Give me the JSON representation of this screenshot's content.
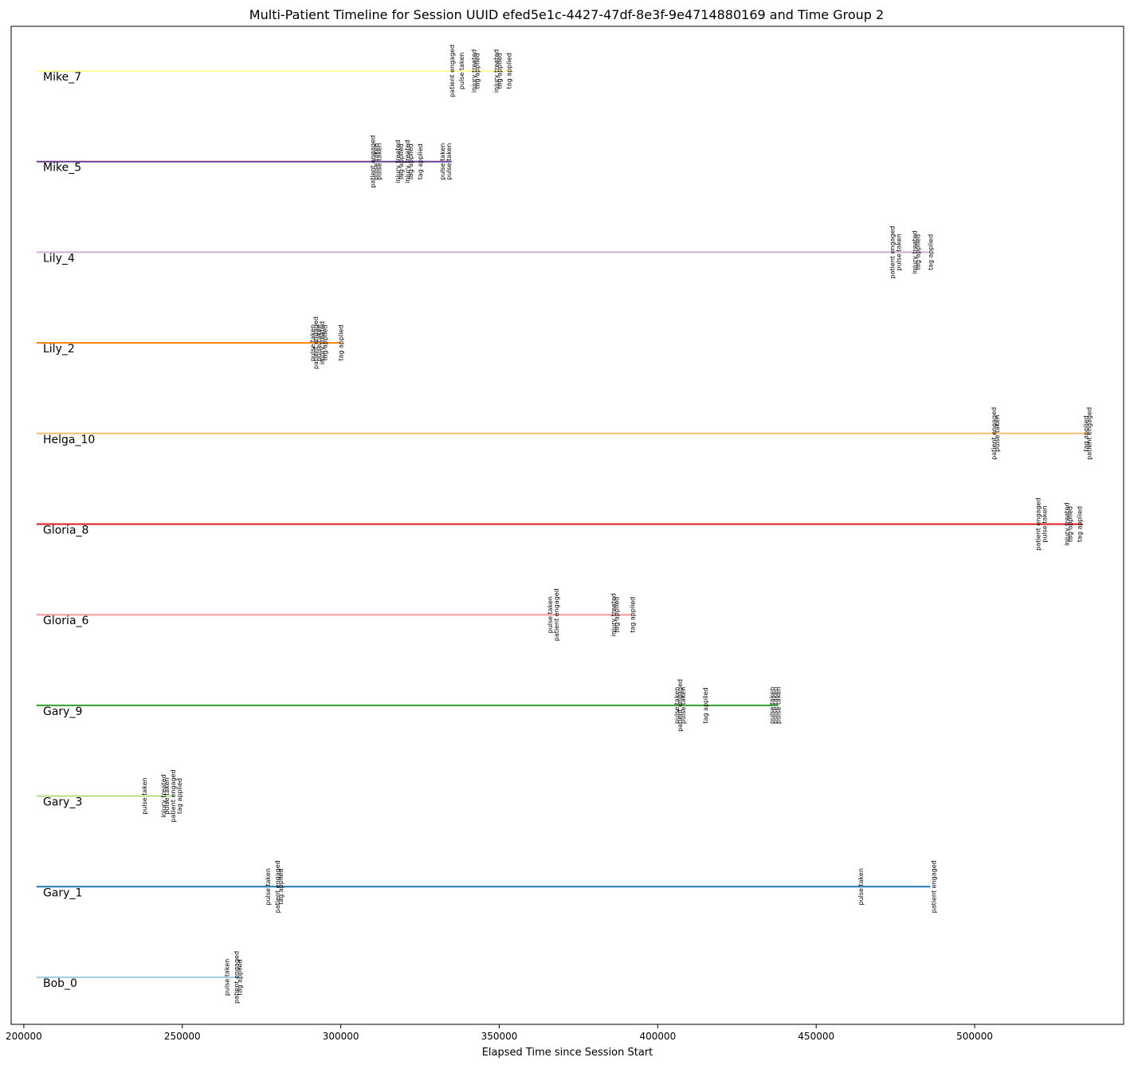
{
  "chart_data": {
    "type": "line",
    "title": "Multi-Patient Timeline for Session UUID efed5e1c-4427-47df-8e3f-9e4714880169 and Time Group 2",
    "xlabel": "Elapsed Time since Session Start",
    "ylabel": "",
    "xlim": [
      196000,
      547000
    ],
    "xticks": [
      200000,
      250000,
      300000,
      350000,
      400000,
      450000,
      500000
    ],
    "grid": false,
    "line_start": 204000,
    "rows": [
      {
        "name": "Bob_0",
        "color": "#a6cee3",
        "end": 268000,
        "events": [
          {
            "x": 264000,
            "label": "pulse taken"
          },
          {
            "x": 267000,
            "label": "patient engaged"
          },
          {
            "x": 268000,
            "label": "tag applied"
          }
        ]
      },
      {
        "name": "Gary_1",
        "color": "#1f78b4",
        "end": 486000,
        "events": [
          {
            "x": 277000,
            "label": "pulse taken"
          },
          {
            "x": 280000,
            "label": "patient engaged"
          },
          {
            "x": 281000,
            "label": "tag applied"
          },
          {
            "x": 464000,
            "label": "pulse taken"
          },
          {
            "x": 487000,
            "label": "patient engaged"
          }
        ]
      },
      {
        "name": "Gary_3",
        "color": "#b2df8a",
        "end": 247000,
        "events": [
          {
            "x": 238000,
            "label": "pulse taken"
          },
          {
            "x": 244000,
            "label": "injury treated"
          },
          {
            "x": 245000,
            "label": "pulse taken"
          },
          {
            "x": 247000,
            "label": "patient engaged"
          },
          {
            "x": 249000,
            "label": "tag applied"
          }
        ]
      },
      {
        "name": "Gary_9",
        "color": "#33a02c",
        "end": 438000,
        "events": [
          {
            "x": 406000,
            "label": "pulse taken"
          },
          {
            "x": 407000,
            "label": "patient engaged"
          },
          {
            "x": 408000,
            "label": "pulse taken"
          },
          {
            "x": 415000,
            "label": "tag applied"
          },
          {
            "x": 436000,
            "label": "pulse taken"
          },
          {
            "x": 437000,
            "label": "pulse taken"
          },
          {
            "x": 438000,
            "label": "pulse taken"
          }
        ]
      },
      {
        "name": "Gloria_6",
        "color": "#fb9a99",
        "end": 392000,
        "events": [
          {
            "x": 366000,
            "label": "pulse taken"
          },
          {
            "x": 368000,
            "label": "patient engaged"
          },
          {
            "x": 386000,
            "label": "injury treated"
          },
          {
            "x": 387000,
            "label": "tag applied"
          },
          {
            "x": 392000,
            "label": "tag applied"
          }
        ]
      },
      {
        "name": "Gloria_8",
        "color": "#e31a1c",
        "end": 534000,
        "events": [
          {
            "x": 520000,
            "label": "patient engaged"
          },
          {
            "x": 522000,
            "label": "pulse taken"
          },
          {
            "x": 529000,
            "label": "injury treated"
          },
          {
            "x": 530000,
            "label": "tag applied"
          },
          {
            "x": 533000,
            "label": "tag applied"
          }
        ]
      },
      {
        "name": "Helga_10",
        "color": "#fdbf6f",
        "end": 536000,
        "events": [
          {
            "x": 506000,
            "label": "patient engaged"
          },
          {
            "x": 507000,
            "label": "pulse taken"
          },
          {
            "x": 535000,
            "label": "tag applied"
          },
          {
            "x": 536000,
            "label": "patient engaged"
          }
        ]
      },
      {
        "name": "Lily_2",
        "color": "#ff7f00",
        "end": 300000,
        "events": [
          {
            "x": 291000,
            "label": "pulse taken"
          },
          {
            "x": 292000,
            "label": "patient engaged"
          },
          {
            "x": 293000,
            "label": "pulse taken"
          },
          {
            "x": 294000,
            "label": "injury treated"
          },
          {
            "x": 295000,
            "label": "tag applied"
          },
          {
            "x": 300000,
            "label": "tag applied"
          }
        ]
      },
      {
        "name": "Lily_4",
        "color": "#cab2d6",
        "end": 486000,
        "events": [
          {
            "x": 474000,
            "label": "patient engaged"
          },
          {
            "x": 476000,
            "label": "pulse taken"
          },
          {
            "x": 481000,
            "label": "injury treated"
          },
          {
            "x": 482000,
            "label": "tag applied"
          },
          {
            "x": 486000,
            "label": "tag applied"
          }
        ]
      },
      {
        "name": "Mike_5",
        "color": "#6a3d9a",
        "end": 335000,
        "events": [
          {
            "x": 310000,
            "label": "patient engaged"
          },
          {
            "x": 311000,
            "label": "pulse taken"
          },
          {
            "x": 312000,
            "label": "pulse taken"
          },
          {
            "x": 318000,
            "label": "injury treated"
          },
          {
            "x": 319000,
            "label": "tag applied"
          },
          {
            "x": 321000,
            "label": "injury treated"
          },
          {
            "x": 322000,
            "label": "tag applied"
          },
          {
            "x": 325000,
            "label": "tag applied"
          },
          {
            "x": 332000,
            "label": "pulse taken"
          },
          {
            "x": 334000,
            "label": "pulse taken"
          }
        ]
      },
      {
        "name": "Mike_7",
        "color": "#ffff99",
        "end": 354000,
        "events": [
          {
            "x": 335000,
            "label": "patient engaged"
          },
          {
            "x": 338000,
            "label": "pulse taken"
          },
          {
            "x": 342000,
            "label": "injury treated"
          },
          {
            "x": 343000,
            "label": "tag applied"
          },
          {
            "x": 349000,
            "label": "injury treated"
          },
          {
            "x": 350000,
            "label": "tag applied"
          },
          {
            "x": 353000,
            "label": "tag applied"
          }
        ]
      }
    ]
  }
}
